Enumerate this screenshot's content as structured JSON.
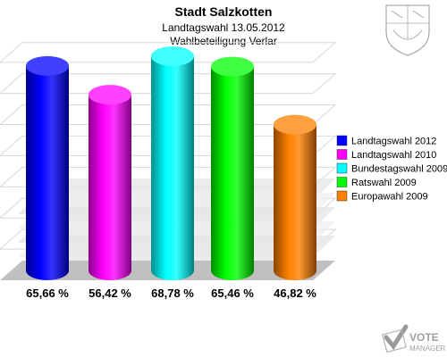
{
  "header": {
    "title": "Stadt Salzkotten",
    "subtitle1": "Landtagswahl 13.05.2012",
    "subtitle2": "Wahlbeteiligung Verlar"
  },
  "watermark": {
    "brand_top": "VOTE",
    "brand_bottom": "MANAGER",
    "crest_icon": "nrw-coat-of-arms-icon"
  },
  "chart_data": {
    "type": "bar",
    "categories": [
      "Landtagswahl 2012",
      "Landtagswahl 2010",
      "Bundestagswahl 2009",
      "Ratswahl 2009",
      "Europawahl 2009"
    ],
    "values": [
      65.66,
      56.42,
      68.78,
      65.46,
      46.82
    ],
    "value_labels": [
      "65,66 %",
      "56,42 %",
      "68,78 %",
      "65,46 %",
      "46,82 %"
    ],
    "colors": [
      "#0000ff",
      "#ff00ff",
      "#00ffff",
      "#00ff00",
      "#ff8000"
    ],
    "title": "Stadt Salzkotten",
    "subtitle": "Landtagswahl 13.05.2012 / Wahlbeteiligung Verlar",
    "ylim": [
      0,
      100
    ],
    "grid": true,
    "legend_position": "right",
    "bar_style": "3d-cylinder"
  }
}
